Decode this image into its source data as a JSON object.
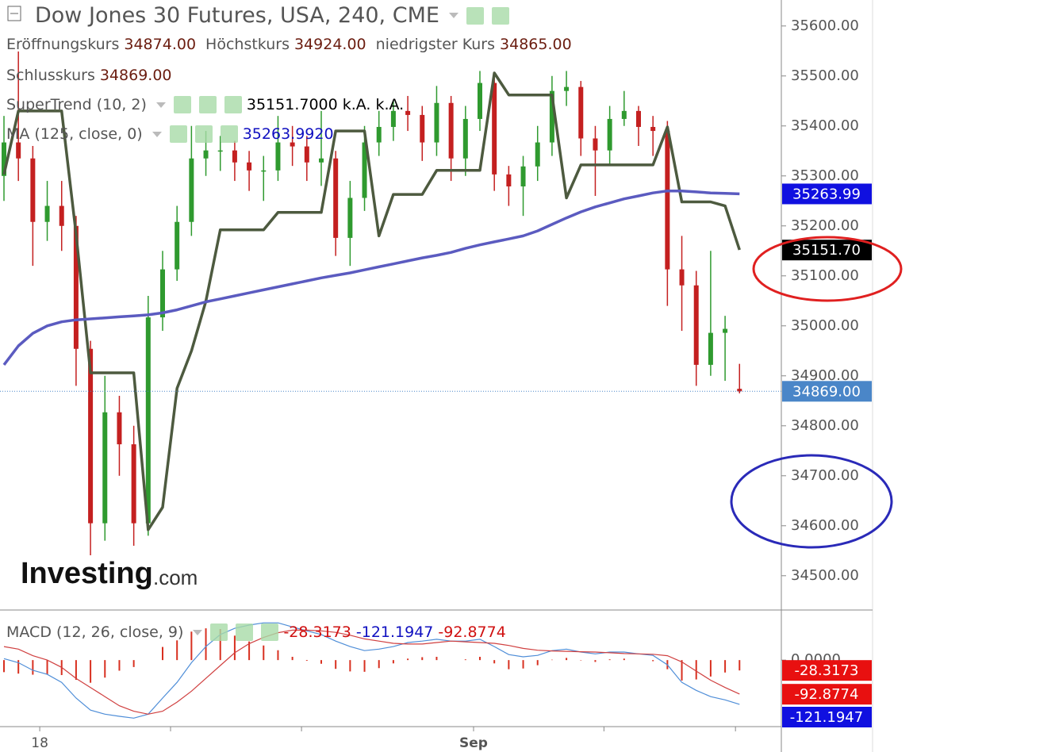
{
  "chart_data": [
    {
      "type": "candlestick",
      "title": "Dow Jones 30 Futures, USA, 240, CME",
      "ohlc_legend": [
        {
          "name": "Eröffnungskurs",
          "value": {
            "value": 34874,
            "label": "34874.00"
          }
        },
        {
          "name": "Höchstkurs",
          "value": {
            "value": 34924,
            "label": "34924.00"
          }
        },
        {
          "name": "niedrigster Kurs",
          "value": {
            "value": 34865,
            "label": "34865.00"
          }
        },
        {
          "name": "Schlusskurs",
          "value": {
            "value": 34869,
            "label": "34869.00"
          }
        }
      ],
      "candles": {
        "open": [
          35300,
          35367,
          35335,
          35208,
          35240,
          35200,
          34954,
          34605,
          34827,
          34763,
          34605,
          35017,
          35113,
          35208,
          35335,
          35351,
          35351,
          35327,
          35311,
          35311,
          35367,
          35359,
          35327,
          35335,
          35176,
          35256,
          35367,
          35398,
          35430,
          35422,
          35367,
          35446,
          35335,
          35414,
          35486,
          35303,
          35279,
          35319,
          35367,
          35470,
          35478,
          35375,
          35351,
          35414,
          35430,
          35398,
          35390,
          35113,
          35081,
          34922,
          34986,
          34874
        ],
        "high": [
          35420,
          35549,
          35360,
          35290,
          35290,
          35220,
          34970,
          34900,
          34860,
          34800,
          35060,
          35150,
          35240,
          35400,
          35390,
          35380,
          35370,
          35350,
          35340,
          35420,
          35400,
          35380,
          35430,
          35350,
          35290,
          35400,
          35430,
          35450,
          35460,
          35440,
          35480,
          35460,
          35440,
          35510,
          35500,
          35320,
          35340,
          35400,
          35500,
          35510,
          35490,
          35400,
          35440,
          35470,
          35440,
          35420,
          35410,
          35180,
          35110,
          35150,
          35020,
          34924
        ],
        "low": [
          35250,
          35290,
          35120,
          35170,
          35150,
          34880,
          34541,
          34570,
          34700,
          34560,
          34580,
          34990,
          35090,
          35180,
          35300,
          35310,
          35290,
          35270,
          35250,
          35290,
          35320,
          35290,
          35280,
          35140,
          35120,
          35230,
          35340,
          35370,
          35390,
          35330,
          35340,
          35290,
          35300,
          35390,
          35270,
          35240,
          35220,
          35290,
          35340,
          35440,
          35340,
          35260,
          35320,
          35400,
          35360,
          35340,
          35040,
          34990,
          34880,
          34900,
          34890,
          34865
        ],
        "close": [
          35367,
          35335,
          35208,
          35240,
          35200,
          34954,
          34605,
          34827,
          34763,
          34605,
          35017,
          35113,
          35208,
          35335,
          35351,
          35351,
          35327,
          35311,
          35311,
          35367,
          35359,
          35327,
          35335,
          35176,
          35256,
          35367,
          35398,
          35430,
          35422,
          35367,
          35446,
          35335,
          35414,
          35486,
          35303,
          35279,
          35319,
          35367,
          35470,
          35478,
          35375,
          35351,
          35414,
          35430,
          35398,
          35390,
          35113,
          35081,
          34922,
          34986,
          34994,
          34869
        ]
      },
      "up_color": "#2f9a2f",
      "down_color": "#c42020",
      "series": [
        {
          "name": "SuperTrend (10, 2)",
          "color": "#4d5a3f",
          "legend_values": [
            {
              "value": 35151.7,
              "label": "35151.7000"
            },
            "k.A.",
            "k.A."
          ],
          "values": [
            35303,
            35430,
            35430,
            35430,
            35430,
            35184,
            34906,
            34906,
            34906,
            34906,
            34592,
            34637,
            34875,
            34950,
            35049,
            35192,
            35192,
            35192,
            35192,
            35227,
            35227,
            35227,
            35227,
            35390,
            35390,
            35390,
            35180,
            35263,
            35263,
            35263,
            35311,
            35311,
            35311,
            35311,
            35506,
            35462,
            35462,
            35462,
            35462,
            35256,
            35322,
            35322,
            35322,
            35322,
            35322,
            35322,
            35398,
            35248,
            35248,
            35248,
            35240,
            35152
          ]
        },
        {
          "name": "MA (125, close, 0)",
          "color": "#5b5bc0",
          "legend_values": [
            {
              "value": 35263.992,
              "label": "35263.9920"
            }
          ],
          "values": [
            34922,
            34960,
            34985,
            35000,
            35008,
            35012,
            35014,
            35016,
            35018,
            35020,
            35022,
            35026,
            35032,
            35040,
            35048,
            35054,
            35060,
            35066,
            35072,
            35078,
            35084,
            35090,
            35096,
            35101,
            35106,
            35112,
            35118,
            35124,
            35130,
            35136,
            35141,
            35147,
            35155,
            35162,
            35168,
            35174,
            35180,
            35190,
            35203,
            35216,
            35228,
            35238,
            35246,
            35254,
            35260,
            35266,
            35270,
            35270,
            35268,
            35266,
            35265,
            35264
          ]
        }
      ],
      "xlim": [
        -0.275,
        53.9
      ],
      "ylim": [
        34433,
        35652
      ],
      "yticks": [
        {
          "value": 35600,
          "label": "35600.00"
        },
        {
          "value": 35500,
          "label": "35500.00"
        },
        {
          "value": 35400,
          "label": "35400.00"
        },
        {
          "value": 35300,
          "label": "35300.00"
        },
        {
          "value": 35200,
          "label": "35200.00"
        },
        {
          "value": 35100,
          "label": "35100.00"
        },
        {
          "value": 35000,
          "label": "35000.00"
        },
        {
          "value": 34900,
          "label": "34900.00"
        },
        {
          "value": 34800,
          "label": "34800.00"
        },
        {
          "value": 34700,
          "label": "34700.00"
        },
        {
          "value": 34600,
          "label": "34600.00"
        },
        {
          "value": 34500,
          "label": "34500.00"
        }
      ],
      "price_labels": [
        {
          "value": 35263.99,
          "label": "35263.99",
          "color": "#1010e0"
        },
        {
          "value": 35151.7,
          "label": "35151.70",
          "color": "#000000"
        },
        {
          "value": 34869,
          "label": "34869.00",
          "color": "#4a86c8"
        }
      ],
      "watermark": [
        "Investing",
        ".com"
      ]
    },
    {
      "type": "macd",
      "name": "MACD (12, 26, close, 9)",
      "legend_values": [
        {
          "value": -28.3173,
          "label": "-28.3173",
          "color": "#d01010"
        },
        {
          "value": -121.1947,
          "label": "-121.1947",
          "color": "#1010c0"
        },
        {
          "value": -92.8774,
          "label": "-92.8774",
          "color": "#d01010"
        }
      ],
      "histogram": {
        "color": "#d83020",
        "values": [
          -33,
          -37,
          -40,
          -39,
          -41,
          -54,
          -62,
          -48,
          -29,
          -19,
          0,
          36,
          54,
          78,
          87,
          85,
          67,
          51,
          40,
          27,
          9,
          -2,
          -10,
          -24,
          -31,
          -32,
          -22,
          -9,
          4,
          8,
          9,
          0,
          2,
          9,
          -9,
          -25,
          -23,
          -14,
          1,
          6,
          -1,
          -5,
          2,
          4,
          0,
          -3,
          -25,
          -56,
          -53,
          -45,
          -34,
          -28.3173
        ]
      },
      "series": [
        {
          "color": "#4f8ed8",
          "values": [
            4,
            -7,
            -28,
            -39,
            -61,
            -104,
            -137,
            -148,
            -154,
            -159,
            -148,
            -104,
            -61,
            -7,
            37,
            70,
            87,
            96,
            102,
            102,
            91,
            80,
            70,
            52,
            37,
            26,
            30,
            37,
            48,
            52,
            57,
            52,
            52,
            57,
            37,
            15,
            9,
            13,
            26,
            30,
            22,
            17,
            22,
            22,
            17,
            13,
            -13,
            -61,
            -83,
            -100,
            -109,
            -121.1947
          ]
        },
        {
          "color": "#d04040",
          "values": [
            37,
            30,
            12,
            0,
            -20,
            -50,
            -75,
            -100,
            -125,
            -140,
            -148,
            -140,
            -115,
            -85,
            -50,
            -15,
            20,
            45,
            62,
            75,
            82,
            82,
            80,
            76,
            68,
            58,
            52,
            46,
            44,
            44,
            48,
            52,
            50,
            48,
            46,
            40,
            32,
            27,
            25,
            24,
            23,
            22,
            20,
            18,
            17,
            16,
            12,
            -5,
            -30,
            -55,
            -75,
            -92.8774
          ]
        }
      ],
      "xlim": [
        -0.275,
        53.9
      ],
      "ylim": [
        -180,
        135
      ],
      "yticks": [
        {
          "value": 0,
          "label": "0.0000"
        }
      ],
      "xticks": [
        {
          "value": 2.48,
          "label": "18"
        },
        {
          "value": 11.55,
          "label": null
        },
        {
          "value": 20.63,
          "label": null
        },
        {
          "value": 32.56,
          "label": "Sep"
        },
        {
          "value": 41.6,
          "label": null
        },
        {
          "value": 50.72,
          "label": null
        }
      ],
      "price_labels": [
        {
          "value": -28.3173,
          "label": "-28.3173",
          "color": "#e81010"
        },
        {
          "value": -92.8774,
          "label": "-92.8774",
          "color": "#e81010"
        },
        {
          "value": -121.1947,
          "label": "-121.1947",
          "color": "#1010e0"
        }
      ]
    }
  ]
}
